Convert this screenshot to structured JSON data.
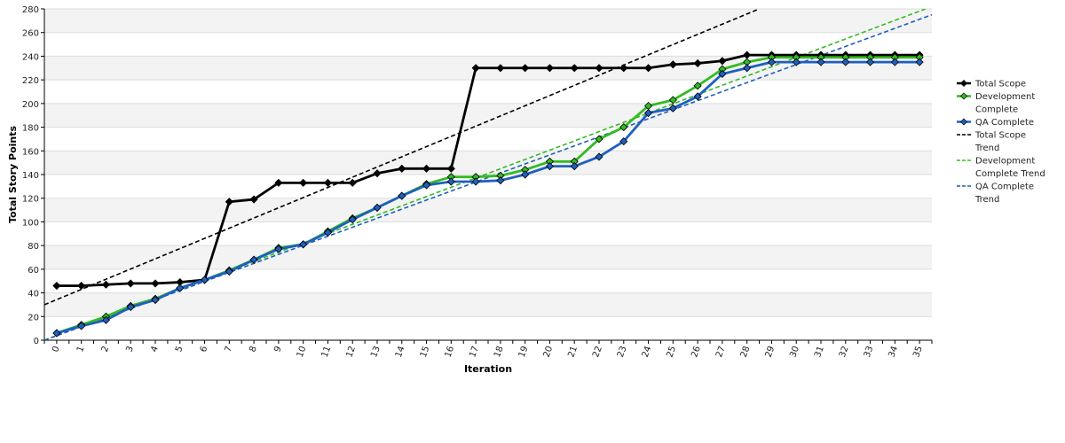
{
  "chart_data": {
    "type": "line",
    "xlabel": "Iteration",
    "ylabel": "Total Story Points",
    "x": [
      0,
      1,
      2,
      3,
      4,
      5,
      6,
      7,
      8,
      9,
      10,
      11,
      12,
      13,
      14,
      15,
      16,
      17,
      18,
      19,
      20,
      21,
      22,
      23,
      24,
      25,
      26,
      27,
      28,
      29,
      30,
      31,
      32,
      33,
      34,
      35
    ],
    "ylim": [
      0,
      280
    ],
    "yticks": [
      0,
      20,
      40,
      60,
      80,
      100,
      120,
      140,
      160,
      180,
      200,
      220,
      240,
      260,
      280
    ],
    "grid": "horizontal bands",
    "legend_position": "right",
    "series": [
      {
        "name": "Total Scope",
        "color": "#000000",
        "style": "solid",
        "marker": "diamond",
        "values": [
          46,
          46,
          47,
          48,
          48,
          49,
          51,
          117,
          119,
          133,
          133,
          133,
          133,
          141,
          145,
          145,
          145,
          230,
          230,
          230,
          230,
          230,
          230,
          230,
          230,
          233,
          234,
          236,
          241,
          241,
          241,
          241,
          241,
          241,
          241,
          241
        ]
      },
      {
        "name": "Development Complete",
        "color": "#33bb22",
        "style": "solid",
        "marker": "diamond",
        "values": [
          6,
          13,
          20,
          29,
          35,
          44,
          51,
          59,
          68,
          78,
          81,
          92,
          103,
          112,
          122,
          132,
          138,
          138,
          139,
          144,
          151,
          151,
          170,
          180,
          198,
          203,
          215,
          229,
          235,
          239,
          239,
          239,
          239,
          239,
          239,
          239
        ]
      },
      {
        "name": "QA Complete",
        "color": "#1f5fbf",
        "style": "solid",
        "marker": "diamond",
        "values": [
          6,
          12,
          17,
          28,
          34,
          44,
          51,
          58,
          68,
          77,
          81,
          91,
          102,
          112,
          122,
          131,
          134,
          134,
          135,
          140,
          147,
          147,
          155,
          168,
          192,
          196,
          206,
          225,
          230,
          235,
          235,
          235,
          235,
          235,
          235,
          235
        ]
      },
      {
        "name": "Total Scope Trend",
        "color": "#000000",
        "style": "dashed",
        "start": [
          -0.5,
          30
        ],
        "end": [
          28.5,
          280
        ]
      },
      {
        "name": "Development Complete Trend",
        "color": "#33bb22",
        "style": "dashed",
        "start": [
          -0.5,
          0
        ],
        "end": [
          35.5,
          282
        ]
      },
      {
        "name": "QA Complete Trend",
        "color": "#1f5fbf",
        "style": "dashed",
        "start": [
          -0.5,
          0
        ],
        "end": [
          35.5,
          275
        ]
      }
    ]
  }
}
